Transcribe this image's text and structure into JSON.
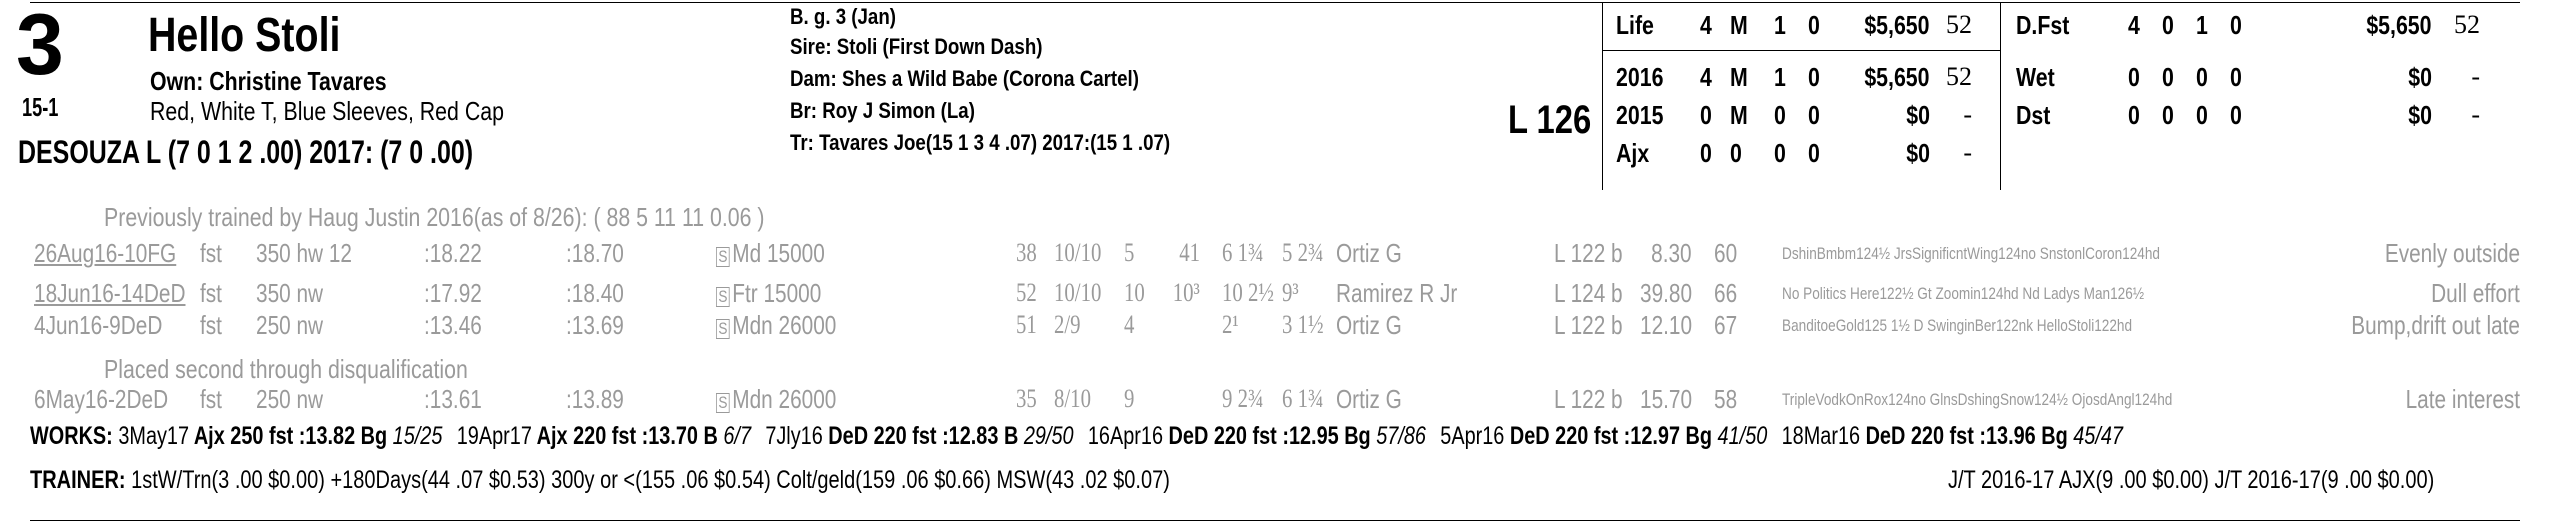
{
  "entry": {
    "program_number": "3",
    "horse_name": "Hello Stoli",
    "owner": "Own: Christine Tavares",
    "odds": "15-1",
    "silks": "Red, White T, Blue Sleeves, Red Cap",
    "jockey": "DESOUZA L (7 0 1 2 .00) 2017: (7 0 .00)",
    "breeding": "B. g. 3 (Jan)",
    "sire": "Sire: Stoli (First Down Dash)",
    "dam": "Dam: Shes a Wild Babe (Corona Cartel)",
    "breeder": "Br:   Roy J Simon (La)",
    "trainer_line": "Tr:   Tavares Joe(15 1 3 4 .07)  2017:(15 1 .07)",
    "weight": "L 126"
  },
  "stats_left": [
    {
      "label": "Life",
      "s": "4",
      "w": "M",
      "p": "1",
      "sh": "0",
      "earn": "$5,650",
      "spd": "52"
    },
    {
      "label": "2016",
      "s": "4",
      "w": "M",
      "p": "1",
      "sh": "0",
      "earn": "$5,650",
      "spd": "52"
    },
    {
      "label": "2015",
      "s": "0",
      "w": "M",
      "p": "0",
      "sh": "0",
      "earn": "$0",
      "spd": "-"
    },
    {
      "label": "Ajx",
      "s": "0",
      "w": "0",
      "p": "0",
      "sh": "0",
      "earn": "$0",
      "spd": "-"
    }
  ],
  "stats_right": [
    {
      "label": "D.Fst",
      "s": "4",
      "w": "0",
      "p": "1",
      "sh": "0",
      "earn": "$5,650",
      "spd": "52"
    },
    {
      "label": "Wet",
      "s": "0",
      "w": "0",
      "p": "0",
      "sh": "0",
      "earn": "$0",
      "spd": "-"
    },
    {
      "label": "Dst",
      "s": "0",
      "w": "0",
      "p": "0",
      "sh": "0",
      "earn": "$0",
      "spd": "-"
    }
  ],
  "notes": {
    "prev_trainer": "Previously trained by Haug Justin 2016(as of 8/26): ( 88 5 11 11 0.06 )",
    "dq_note": "Placed second through disqualification"
  },
  "past_performances": [
    {
      "date": "26Aug16-10FG",
      "surf": "fst",
      "dist": "350 hw 12",
      "f1": ":18.22",
      "f2": ":18.70",
      "s": "S",
      "race": "Md 15000",
      "spd": "38",
      "pp": "10/10",
      "st": "5",
      "c1": "41",
      "c2": "6 1¾",
      "fin": "5 2¾",
      "jockey": "Ortiz G",
      "wt": "L 122 b",
      "odds": "8.30",
      "idx": "60",
      "comment": "DshinBmbm124½ JrsSignificntWing124no SnstonlCoron124hd",
      "trip": "Evenly outside"
    },
    {
      "date": "18Jun16-14DeD",
      "surf": "fst",
      "dist": "350 nw",
      "f1": ":17.92",
      "f2": ":18.40",
      "s": "S",
      "race": "Ftr 15000",
      "spd": "52",
      "pp": "10/10",
      "st": "10",
      "c1": "10³",
      "c2": "10 2½",
      "fin": "9³",
      "jockey": "Ramirez R Jr",
      "wt": "L 124 b",
      "odds": "39.80",
      "idx": "66",
      "comment": "No Politics Here122½ Gt Zoomin124hd Nd Ladys Man126½",
      "trip": "Dull effort"
    },
    {
      "date": "4Jun16-9DeD",
      "surf": "fst",
      "dist": "250 nw",
      "f1": ":13.46",
      "f2": ":13.69",
      "s": "S",
      "race": "Mdn 26000",
      "spd": "51",
      "pp": "2/9",
      "st": "4",
      "c1": "",
      "c2": "2¹",
      "fin": "3 1½",
      "jockey": "Ortiz G",
      "wt": "L 122 b",
      "odds": "12.10",
      "idx": "67",
      "comment": "BanditoeGold125 1½ D SwinginBer122nk HelloStoli122hd",
      "trip": "Bump,drift out late"
    },
    {
      "date": "6May16-2DeD",
      "surf": "fst",
      "dist": "250 nw",
      "f1": ":13.61",
      "f2": ":13.89",
      "s": "S",
      "race": "Mdn 26000",
      "spd": "35",
      "pp": "8/10",
      "st": "9",
      "c1": "",
      "c2": "9 2¾",
      "fin": "6 1¾",
      "jockey": "Ortiz G",
      "wt": "L 122 b",
      "odds": "15.70",
      "idx": "58",
      "comment": "TripleVodkOnRox124no GlnsDshingSnow124½ OjosdAngl124hd",
      "trip": "Late interest"
    }
  ],
  "works": {
    "label": "WORKS:",
    "items": [
      {
        "date": "3May17",
        "track": "Ajx",
        "dist": "250 fst",
        "time": ":13.82",
        "grade": "Bg",
        "rank": "15/25"
      },
      {
        "date": "19Apr17",
        "track": "Ajx",
        "dist": "220 fst",
        "time": ":13.70",
        "grade": "B",
        "rank": "6/7"
      },
      {
        "date": "7Jly16",
        "track": "DeD",
        "dist": "220 fst",
        "time": ":12.83",
        "grade": "B",
        "rank": "29/50"
      },
      {
        "date": "16Apr16",
        "track": "DeD",
        "dist": "220 fst",
        "time": ":12.95",
        "grade": "Bg",
        "rank": "57/86"
      },
      {
        "date": "5Apr16",
        "track": "DeD",
        "dist": "220 fst",
        "time": ":12.97",
        "grade": "Bg",
        "rank": "41/50"
      },
      {
        "date": "18Mar16",
        "track": "DeD",
        "dist": "220 fst",
        "time": ":13.96",
        "grade": "Bg",
        "rank": "45/47"
      }
    ]
  },
  "trainer_stats": {
    "label": "TRAINER:",
    "text": "1stW/Trn(3 .00 $0.00) +180Days(44 .07 $0.53) 300y or <(155 .06 $0.54) Colt/geld(159 .06 $0.66) MSW(43 .02 $0.07)",
    "jt": "J/T 2016-17 AJX(9 .00 $0.00)  J/T 2016-17(9 .00 $0.00)"
  }
}
